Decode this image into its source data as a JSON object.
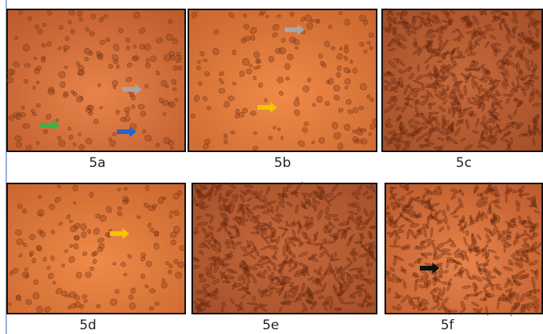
{
  "panels": [
    {
      "label": "5a"
    },
    {
      "label": "5b"
    },
    {
      "label": "5c"
    },
    {
      "label": "5d"
    },
    {
      "label": "5e"
    },
    {
      "label": "5f"
    }
  ]
}
